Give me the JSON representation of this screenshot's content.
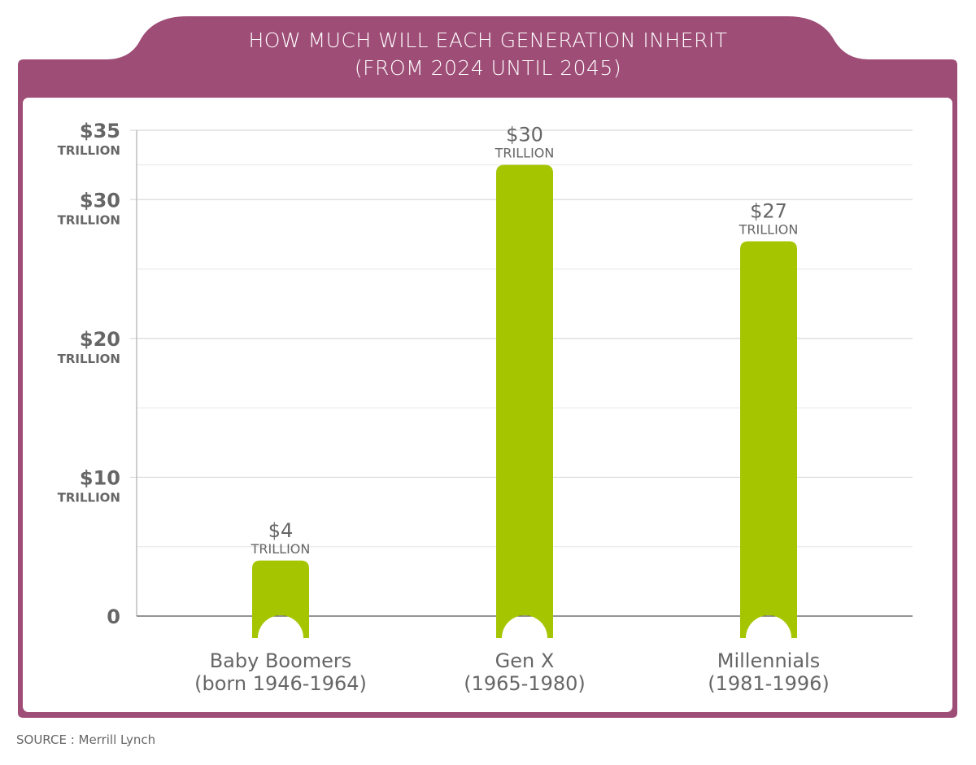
{
  "title": {
    "line1": "HOW MUCH WILL EACH GENERATION INHERIT",
    "line2": "(FROM 2024 UNTIL 2045)"
  },
  "source": "SOURCE  :  Merrill Lynch",
  "colors": {
    "frame": "#9E4D76",
    "bar": "#A5C500",
    "text": "#666666",
    "grid": "#D9D9D9"
  },
  "chart_data": {
    "type": "bar",
    "title": "HOW MUCH WILL EACH GENERATION INHERIT (FROM 2024 UNTIL 2045)",
    "xlabel": "",
    "ylabel": "",
    "unit": "TRILLION",
    "categories": [
      "Baby Boomers",
      "Gen X",
      "Millennials"
    ],
    "category_sublabels": [
      "(born 1946-1964)",
      "(1965-1980)",
      "(1981-1996)"
    ],
    "values": [
      4,
      30,
      27
    ],
    "value_labels": [
      "$4",
      "$30",
      "$27"
    ],
    "drawn_values": [
      4,
      32.5,
      27
    ],
    "ylim": [
      0,
      35
    ],
    "yticks": [
      0,
      10,
      20,
      30,
      35
    ],
    "ytick_labels": [
      "0",
      "$10",
      "$20",
      "$30",
      "$35"
    ],
    "minor_gridlines": [
      5,
      15,
      25,
      32.5
    ],
    "grid": true,
    "legend": "none",
    "source": "Merrill Lynch"
  }
}
